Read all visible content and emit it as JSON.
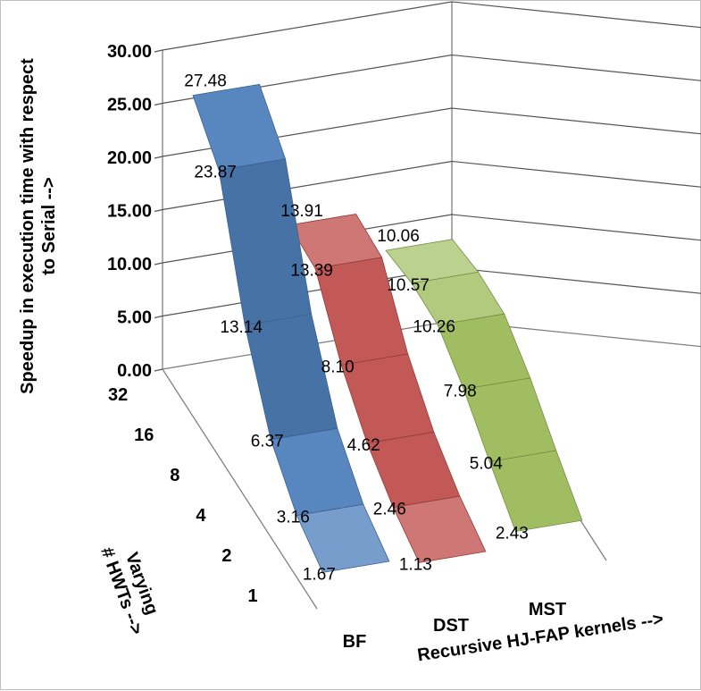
{
  "chart_data": {
    "type": "ribbon-3d",
    "ylabel": "Speedup in execution time with respect to Serial -->",
    "y_title_lines": [
      "Speedup in execution time with respect",
      "to Serial -->"
    ],
    "xlabel": "Recursive HJ-FAP kernels -->",
    "zlabel": "Varying # HWTs -->",
    "z_title_lines": [
      "Varying",
      "# HWTs -->"
    ],
    "ylim": [
      0,
      30
    ],
    "yticks": [
      "0.00",
      "5.00",
      "10.00",
      "15.00",
      "20.00",
      "25.00",
      "30.00"
    ],
    "categories": [
      "1",
      "2",
      "4",
      "8",
      "16",
      "32"
    ],
    "series": [
      {
        "name": "BF",
        "values": [
          1.67,
          3.16,
          6.37,
          13.14,
          23.87,
          27.48
        ],
        "labels": [
          "1.67",
          "3.16",
          "6.37",
          "13.14",
          "23.87",
          "27.48"
        ],
        "color": "#4f81bd"
      },
      {
        "name": "DST",
        "values": [
          1.13,
          2.46,
          4.62,
          8.1,
          13.39,
          13.91
        ],
        "labels": [
          "1.13",
          "2.46",
          "4.62",
          "8.10",
          "13.39",
          "13.91"
        ],
        "color": "#c0504d"
      },
      {
        "name": "MST",
        "values": [
          2.43,
          5.04,
          7.98,
          10.26,
          10.57,
          10.06
        ],
        "labels": [
          "2.43",
          "5.04",
          "7.98",
          "10.26",
          "10.57",
          "10.06"
        ],
        "color": "#9bbb59"
      }
    ]
  }
}
